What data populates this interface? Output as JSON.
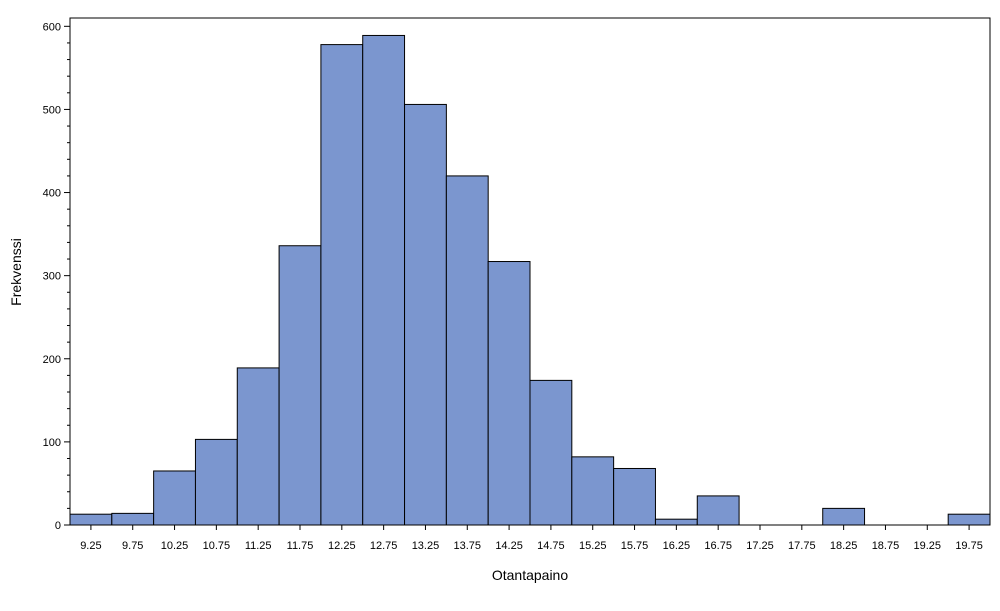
{
  "chart_data": {
    "type": "bar",
    "title": "",
    "xlabel": "Otantapaino",
    "ylabel": "Frekvenssi",
    "categories": [
      "9.25",
      "9.75",
      "10.25",
      "10.75",
      "11.25",
      "11.75",
      "12.25",
      "12.75",
      "13.25",
      "13.75",
      "14.25",
      "14.75",
      "15.25",
      "15.75",
      "16.25",
      "16.75",
      "17.25",
      "17.75",
      "18.25",
      "18.75",
      "19.25",
      "19.75"
    ],
    "values": [
      13,
      14,
      65,
      103,
      189,
      336,
      578,
      589,
      506,
      420,
      317,
      174,
      82,
      68,
      7,
      35,
      0,
      0,
      20,
      0,
      0,
      13
    ],
    "ylim": [
      0,
      610
    ],
    "yticks": [
      "0",
      "100",
      "200",
      "300",
      "400",
      "500",
      "600"
    ],
    "grid": false,
    "legend": "none",
    "bar_color": "#7b96cf",
    "bar_edge_color": "#000000"
  }
}
